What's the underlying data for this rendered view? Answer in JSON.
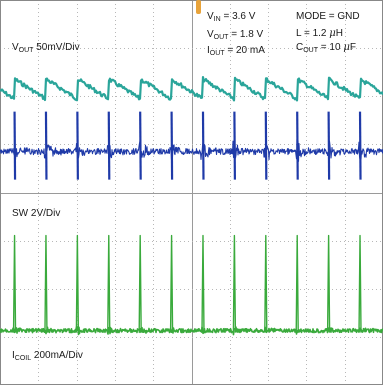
{
  "colors": {
    "vout_trace": "#2aa59a",
    "sw_trace": "#1f3aa8",
    "icoil_trace": "#3aaa3c",
    "grid": "#b8b8b8",
    "marker": "#e8a33a"
  },
  "channels": {
    "vout": {
      "name": "V",
      "sub": "OUT",
      "scale": "50mV/Div"
    },
    "sw": {
      "name": "SW",
      "scale": "2V/Div"
    },
    "icoil": {
      "name": "I",
      "sub": "COIL",
      "scale": "200mA/Div"
    }
  },
  "conditions": {
    "vin": {
      "name": "V",
      "sub": "IN",
      "value": "= 3.6 V"
    },
    "vout": {
      "name": "V",
      "sub": "OUT",
      "value": "= 1.8 V"
    },
    "iout": {
      "name": "I",
      "sub": "OUT",
      "value": "= 20 mA"
    },
    "mode": {
      "text": "MODE = GND"
    },
    "l": {
      "text_pre": "L = 1.2 ",
      "unit": "μ",
      "text_post": "H"
    },
    "cout": {
      "name": "C",
      "sub": "OUT",
      "pre": "= 10 ",
      "unit": "μ",
      "post": "F"
    }
  },
  "waveform": {
    "period_divs": 0.82,
    "first_edge_div": 0.38
  }
}
